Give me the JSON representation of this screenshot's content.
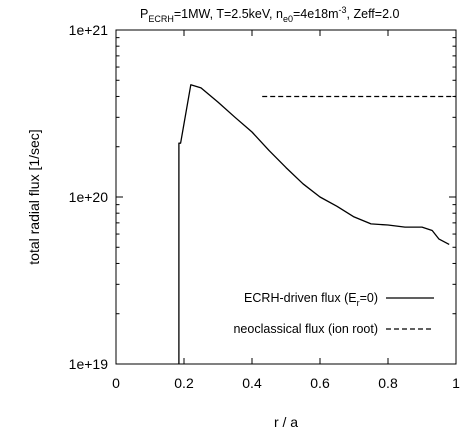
{
  "chart_data": {
    "type": "line",
    "title_parts": {
      "p": "P",
      "p_sub": "ECRH",
      "mid1": "=1MW, T=2.5keV, n",
      "n_sub": "e0",
      "mid2": "=4e18m",
      "exp": "-3",
      "tail": ", Zeff=2.0"
    },
    "xlabel": "r / a",
    "ylabel": "total radial flux [1/sec]",
    "xlim": [
      0,
      1
    ],
    "ylim": [
      1e+19,
      1e+21
    ],
    "yscale": "log",
    "grid": false,
    "legend_position": "bottom-right",
    "x_ticks": [
      {
        "value": 0,
        "label": "0"
      },
      {
        "value": 0.2,
        "label": "0.2"
      },
      {
        "value": 0.4,
        "label": "0.4"
      },
      {
        "value": 0.6,
        "label": "0.6"
      },
      {
        "value": 0.8,
        "label": "0.8"
      },
      {
        "value": 1,
        "label": "1"
      }
    ],
    "y_ticks": [
      {
        "value": 1e+19,
        "label": "1e+19"
      },
      {
        "value": 1e+20,
        "label": "1e+20"
      },
      {
        "value": 1e+21,
        "label": "1e+21"
      }
    ],
    "series": [
      {
        "name": "ECRH-driven flux (E_r=0)",
        "legend_main": "ECRH-driven flux (E",
        "legend_sub": "r",
        "legend_tail": "=0)",
        "style": "solid",
        "x": [
          0.185,
          0.185,
          0.19,
          0.22,
          0.25,
          0.3,
          0.35,
          0.4,
          0.45,
          0.5,
          0.55,
          0.6,
          0.65,
          0.7,
          0.75,
          0.8,
          0.85,
          0.9,
          0.93,
          0.95,
          0.98
        ],
        "y": [
          1e+19,
          2.1e+20,
          2.1e+20,
          4.7e+20,
          4.5e+20,
          3.7e+20,
          3e+20,
          2.45e+20,
          1.9e+20,
          1.5e+20,
          1.2e+20,
          1e+20,
          8.8e+19,
          7.6e+19,
          6.9e+19,
          6.8e+19,
          6.6e+19,
          6.6e+19,
          6.3e+19,
          5.6e+19,
          5.2e+19
        ]
      },
      {
        "name": "neoclassical flux (ion root)",
        "style": "dashed",
        "x": [
          0.43,
          1.0
        ],
        "y": [
          4e+20,
          4e+20
        ]
      }
    ]
  }
}
